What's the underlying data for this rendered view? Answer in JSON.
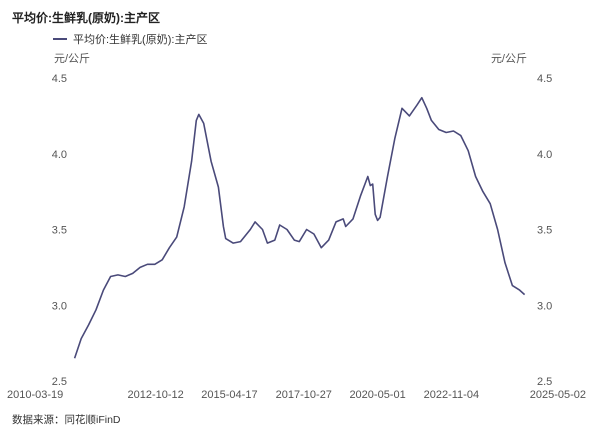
{
  "header": {
    "title": "平均价:生鲜乳(原奶):主产区"
  },
  "footer": {
    "source": "数据来源：同花顺iFinD"
  },
  "chart_data": {
    "type": "line",
    "title": "平均价:生鲜乳(原奶):主产区",
    "unit_left": "元/公斤",
    "unit_right": "元/公斤",
    "ylim": [
      2.5,
      4.5
    ],
    "yticks": [
      "2.5",
      "3.0",
      "3.5",
      "4.0",
      "4.5"
    ],
    "xlim": [
      "2010-01-01",
      "2025-06-01"
    ],
    "xticks": [
      "2010-03-19",
      "2012-10-12",
      "2015-04-17",
      "2017-10-27",
      "2020-05-01",
      "2022-11-04",
      "2025-05-02"
    ],
    "grid": false,
    "legend_position": "top-left",
    "color": "#4a4a7a",
    "series": [
      {
        "name": "平均价:生鲜乳(原奶):主产区",
        "points": [
          [
            "2010-01-08",
            2.65
          ],
          [
            "2010-04-01",
            2.78
          ],
          [
            "2010-07-01",
            2.87
          ],
          [
            "2010-10-01",
            2.97
          ],
          [
            "2011-01-01",
            3.1
          ],
          [
            "2011-04-01",
            3.19
          ],
          [
            "2011-07-01",
            3.2
          ],
          [
            "2011-10-01",
            3.19
          ],
          [
            "2012-01-01",
            3.21
          ],
          [
            "2012-04-01",
            3.25
          ],
          [
            "2012-07-01",
            3.27
          ],
          [
            "2012-10-01",
            3.27
          ],
          [
            "2013-01-01",
            3.3
          ],
          [
            "2013-04-01",
            3.38
          ],
          [
            "2013-07-01",
            3.45
          ],
          [
            "2013-10-01",
            3.65
          ],
          [
            "2014-01-01",
            3.95
          ],
          [
            "2014-03-01",
            4.22
          ],
          [
            "2014-04-01",
            4.26
          ],
          [
            "2014-06-01",
            4.2
          ],
          [
            "2014-09-01",
            3.95
          ],
          [
            "2014-12-01",
            3.78
          ],
          [
            "2015-02-01",
            3.52
          ],
          [
            "2015-03-01",
            3.44
          ],
          [
            "2015-06-01",
            3.41
          ],
          [
            "2015-09-01",
            3.42
          ],
          [
            "2016-01-01",
            3.5
          ],
          [
            "2016-03-01",
            3.55
          ],
          [
            "2016-06-01",
            3.5
          ],
          [
            "2016-08-01",
            3.41
          ],
          [
            "2016-11-01",
            3.43
          ],
          [
            "2017-01-01",
            3.53
          ],
          [
            "2017-04-01",
            3.5
          ],
          [
            "2017-07-01",
            3.43
          ],
          [
            "2017-09-01",
            3.42
          ],
          [
            "2017-12-01",
            3.5
          ],
          [
            "2018-03-01",
            3.47
          ],
          [
            "2018-06-01",
            3.38
          ],
          [
            "2018-09-01",
            3.43
          ],
          [
            "2018-12-01",
            3.55
          ],
          [
            "2019-03-01",
            3.57
          ],
          [
            "2019-04-01",
            3.52
          ],
          [
            "2019-07-01",
            3.57
          ],
          [
            "2019-10-01",
            3.72
          ],
          [
            "2020-01-01",
            3.85
          ],
          [
            "2020-02-01",
            3.79
          ],
          [
            "2020-03-01",
            3.8
          ],
          [
            "2020-04-01",
            3.6
          ],
          [
            "2020-05-01",
            3.56
          ],
          [
            "2020-06-01",
            3.58
          ],
          [
            "2020-09-01",
            3.85
          ],
          [
            "2020-12-01",
            4.1
          ],
          [
            "2021-03-01",
            4.3
          ],
          [
            "2021-06-01",
            4.25
          ],
          [
            "2021-09-01",
            4.32
          ],
          [
            "2021-11-01",
            4.37
          ],
          [
            "2022-01-01",
            4.3
          ],
          [
            "2022-03-01",
            4.22
          ],
          [
            "2022-06-01",
            4.16
          ],
          [
            "2022-09-01",
            4.14
          ],
          [
            "2022-12-01",
            4.15
          ],
          [
            "2023-03-01",
            4.12
          ],
          [
            "2023-06-01",
            4.02
          ],
          [
            "2023-09-01",
            3.85
          ],
          [
            "2023-12-01",
            3.75
          ],
          [
            "2024-03-01",
            3.67
          ],
          [
            "2024-06-01",
            3.5
          ],
          [
            "2024-09-01",
            3.28
          ],
          [
            "2024-12-01",
            3.13
          ],
          [
            "2025-03-01",
            3.1
          ],
          [
            "2025-05-02",
            3.07
          ]
        ]
      }
    ]
  }
}
